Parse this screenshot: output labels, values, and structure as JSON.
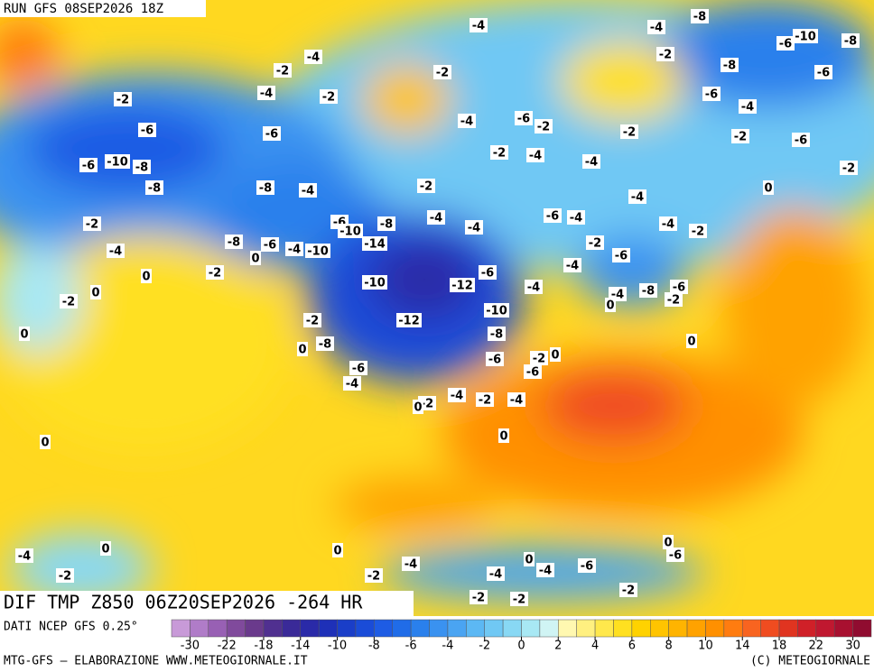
{
  "header": {
    "run": "RUN GFS 08SEP2026 18Z"
  },
  "map": {
    "title": "DIF TMP Z850 06Z20SEP2026 -264 HR",
    "labels": [
      -4,
      -8,
      -4,
      -10,
      -6,
      -8,
      -4,
      -2,
      -2,
      -2,
      -8,
      -6,
      -4,
      -2,
      -2,
      -6,
      -4,
      -4,
      -6,
      -2,
      -6,
      -6,
      -2,
      -2,
      -6,
      -2,
      -4,
      -4,
      -6,
      -10,
      -8,
      -2,
      -2,
      -8,
      -8,
      -4,
      0,
      -4,
      -4,
      -6,
      -4,
      -6,
      -10,
      -8,
      -4,
      -4,
      -2,
      -2,
      -8,
      -6,
      -4,
      -10,
      -14,
      -2,
      -6,
      -4,
      0,
      -4,
      -6,
      -2,
      0,
      -10,
      -12,
      -4,
      -6,
      -8,
      -4,
      0,
      -2,
      -2,
      0,
      -10,
      -12,
      -2,
      0,
      -8,
      0,
      -8,
      0,
      -2,
      0,
      -6,
      -6,
      -6,
      -4,
      -4,
      -2,
      -4,
      -2,
      0,
      0,
      0,
      0,
      0,
      -6,
      -4,
      0,
      -4,
      0,
      -4,
      -6,
      -4,
      -2,
      -2,
      -2,
      -2,
      -2
    ]
  },
  "legend": {
    "source": "DATI NCEP GFS 0.25°",
    "colors": [
      "#c89ad8",
      "#b07cc8",
      "#9860b4",
      "#804a9c",
      "#6a3a8c",
      "#503090",
      "#3a2a98",
      "#2a2aa8",
      "#1e30b8",
      "#1a3ec8",
      "#1a4cd8",
      "#1e5ce4",
      "#206ce8",
      "#2a80ec",
      "#3a92f0",
      "#4aa4f2",
      "#5cb8f4",
      "#70c8f4",
      "#88d8f4",
      "#a8e8f4",
      "#d0f4f4",
      "#fff8b0",
      "#fff080",
      "#ffe84c",
      "#ffe020",
      "#ffd200",
      "#ffc400",
      "#ffb400",
      "#ffa200",
      "#ff9000",
      "#ff7c10",
      "#f86420",
      "#f04c20",
      "#e03420",
      "#d02028",
      "#c01830",
      "#a81030",
      "#900c30"
    ],
    "ticks": [
      -30,
      -22,
      -18,
      -14,
      -10,
      -8,
      -6,
      -4,
      -2,
      0,
      2,
      4,
      6,
      8,
      10,
      14,
      18,
      22,
      30
    ]
  },
  "footer": {
    "credit": "MTG-GFS — ELABORAZIONE WWW.METEOGIORNALE.IT",
    "copyright": "(C) METEOGIORNALE"
  }
}
